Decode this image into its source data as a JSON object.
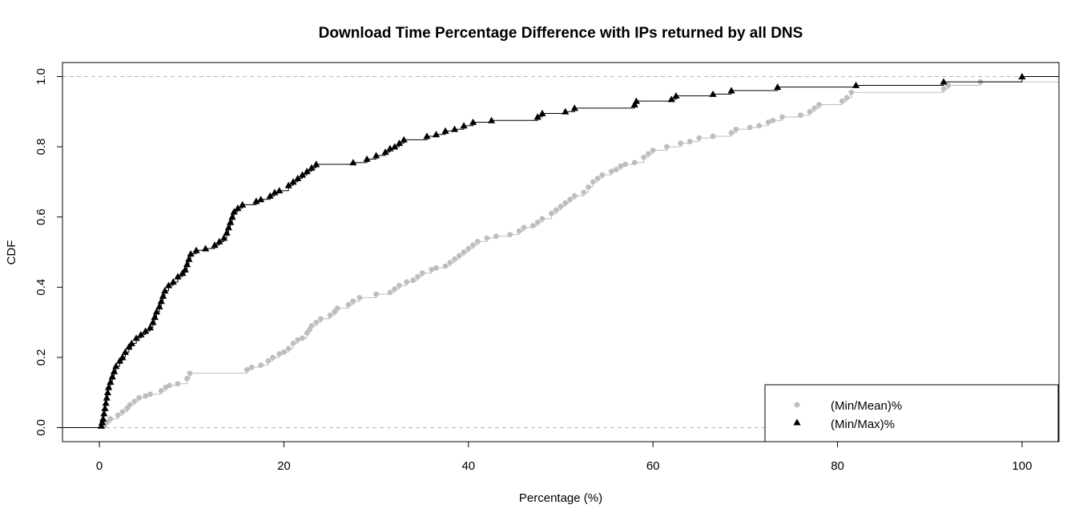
{
  "chart_data": {
    "type": "line",
    "title": "Download Time Percentage Difference with IPs returned by all DNS",
    "xlabel": "Percentage (%)",
    "ylabel": "CDF",
    "xlim": [
      -4,
      104
    ],
    "ylim": [
      -0.04,
      1.04
    ],
    "x_ticks": [
      0,
      20,
      40,
      60,
      80,
      100
    ],
    "y_ticks": [
      0.0,
      0.2,
      0.4,
      0.6,
      0.8,
      1.0
    ],
    "x_tick_labels": [
      "0",
      "20",
      "40",
      "60",
      "80",
      "100"
    ],
    "y_tick_labels": [
      "0.0",
      "0.2",
      "0.4",
      "0.6",
      "0.8",
      "1.0"
    ],
    "reference_lines": [
      0.0,
      1.0
    ],
    "legend_position": "bottom-right",
    "series": [
      {
        "name": "(Min/Mean)%",
        "color": "#bebebe",
        "marker": "circle",
        "points": [
          [
            0.5,
            0.005
          ],
          [
            0.8,
            0.015
          ],
          [
            1.2,
            0.025
          ],
          [
            2.0,
            0.035
          ],
          [
            2.5,
            0.045
          ],
          [
            3.0,
            0.055
          ],
          [
            3.3,
            0.065
          ],
          [
            3.8,
            0.075
          ],
          [
            4.3,
            0.085
          ],
          [
            5.0,
            0.09
          ],
          [
            5.5,
            0.095
          ],
          [
            6.7,
            0.105
          ],
          [
            7.2,
            0.115
          ],
          [
            7.6,
            0.12
          ],
          [
            8.5,
            0.125
          ],
          [
            9.5,
            0.14
          ],
          [
            9.8,
            0.155
          ],
          [
            16.0,
            0.165
          ],
          [
            16.5,
            0.172
          ],
          [
            17.5,
            0.178
          ],
          [
            18.3,
            0.19
          ],
          [
            18.8,
            0.2
          ],
          [
            19.5,
            0.21
          ],
          [
            20.0,
            0.215
          ],
          [
            20.5,
            0.225
          ],
          [
            21.0,
            0.24
          ],
          [
            21.5,
            0.25
          ],
          [
            22.0,
            0.255
          ],
          [
            22.5,
            0.27
          ],
          [
            22.8,
            0.28
          ],
          [
            23.0,
            0.29
          ],
          [
            23.5,
            0.3
          ],
          [
            24.0,
            0.31
          ],
          [
            25.0,
            0.32
          ],
          [
            25.5,
            0.33
          ],
          [
            25.8,
            0.34
          ],
          [
            27.0,
            0.35
          ],
          [
            27.5,
            0.36
          ],
          [
            28.2,
            0.37
          ],
          [
            30.0,
            0.38
          ],
          [
            31.5,
            0.385
          ],
          [
            32.0,
            0.395
          ],
          [
            32.5,
            0.405
          ],
          [
            33.3,
            0.415
          ],
          [
            34.0,
            0.42
          ],
          [
            34.5,
            0.43
          ],
          [
            35.0,
            0.44
          ],
          [
            36.0,
            0.45
          ],
          [
            36.5,
            0.455
          ],
          [
            37.5,
            0.46
          ],
          [
            38.0,
            0.47
          ],
          [
            38.5,
            0.48
          ],
          [
            39.0,
            0.49
          ],
          [
            39.5,
            0.5
          ],
          [
            40.0,
            0.51
          ],
          [
            40.5,
            0.52
          ],
          [
            41.0,
            0.53
          ],
          [
            42.0,
            0.54
          ],
          [
            43.0,
            0.545
          ],
          [
            44.5,
            0.55
          ],
          [
            45.5,
            0.56
          ],
          [
            46.0,
            0.57
          ],
          [
            47.0,
            0.575
          ],
          [
            47.5,
            0.585
          ],
          [
            48.0,
            0.595
          ],
          [
            49.0,
            0.61
          ],
          [
            49.5,
            0.62
          ],
          [
            50.0,
            0.63
          ],
          [
            50.5,
            0.64
          ],
          [
            51.0,
            0.65
          ],
          [
            51.5,
            0.66
          ],
          [
            52.5,
            0.67
          ],
          [
            53.0,
            0.685
          ],
          [
            53.5,
            0.7
          ],
          [
            54.0,
            0.71
          ],
          [
            54.5,
            0.72
          ],
          [
            55.5,
            0.73
          ],
          [
            56.0,
            0.735
          ],
          [
            56.5,
            0.745
          ],
          [
            57.0,
            0.75
          ],
          [
            58.0,
            0.755
          ],
          [
            59.0,
            0.77
          ],
          [
            59.5,
            0.78
          ],
          [
            60.0,
            0.79
          ],
          [
            61.5,
            0.8
          ],
          [
            63.0,
            0.81
          ],
          [
            64.0,
            0.815
          ],
          [
            65.0,
            0.825
          ],
          [
            66.5,
            0.83
          ],
          [
            68.5,
            0.84
          ],
          [
            69.0,
            0.85
          ],
          [
            70.5,
            0.855
          ],
          [
            71.5,
            0.86
          ],
          [
            72.5,
            0.87
          ],
          [
            73.0,
            0.875
          ],
          [
            74.0,
            0.885
          ],
          [
            76.0,
            0.89
          ],
          [
            77.0,
            0.9
          ],
          [
            77.5,
            0.91
          ],
          [
            78.0,
            0.92
          ],
          [
            80.5,
            0.93
          ],
          [
            81.0,
            0.94
          ],
          [
            81.5,
            0.955
          ],
          [
            91.5,
            0.965
          ],
          [
            92.0,
            0.975
          ],
          [
            95.5,
            0.985
          ]
        ]
      },
      {
        "name": "(Min/Max)%",
        "color": "#000000",
        "marker": "triangle",
        "points": [
          [
            0.2,
            0.005
          ],
          [
            0.3,
            0.015
          ],
          [
            0.4,
            0.025
          ],
          [
            0.5,
            0.04
          ],
          [
            0.6,
            0.055
          ],
          [
            0.7,
            0.07
          ],
          [
            0.8,
            0.085
          ],
          [
            0.9,
            0.1
          ],
          [
            1.0,
            0.115
          ],
          [
            1.2,
            0.13
          ],
          [
            1.4,
            0.145
          ],
          [
            1.6,
            0.16
          ],
          [
            1.8,
            0.175
          ],
          [
            2.2,
            0.19
          ],
          [
            2.5,
            0.2
          ],
          [
            2.8,
            0.215
          ],
          [
            3.2,
            0.23
          ],
          [
            3.5,
            0.24
          ],
          [
            4.0,
            0.255
          ],
          [
            4.5,
            0.265
          ],
          [
            5.0,
            0.275
          ],
          [
            5.5,
            0.285
          ],
          [
            5.8,
            0.3
          ],
          [
            6.0,
            0.315
          ],
          [
            6.2,
            0.33
          ],
          [
            6.5,
            0.345
          ],
          [
            6.7,
            0.36
          ],
          [
            6.9,
            0.375
          ],
          [
            7.1,
            0.39
          ],
          [
            7.5,
            0.405
          ],
          [
            8.0,
            0.415
          ],
          [
            8.5,
            0.43
          ],
          [
            9.0,
            0.44
          ],
          [
            9.3,
            0.45
          ],
          [
            9.5,
            0.465
          ],
          [
            9.7,
            0.48
          ],
          [
            9.9,
            0.495
          ],
          [
            10.5,
            0.505
          ],
          [
            11.5,
            0.51
          ],
          [
            12.5,
            0.52
          ],
          [
            13.0,
            0.53
          ],
          [
            13.5,
            0.54
          ],
          [
            13.8,
            0.555
          ],
          [
            14.0,
            0.57
          ],
          [
            14.2,
            0.585
          ],
          [
            14.4,
            0.6
          ],
          [
            14.6,
            0.615
          ],
          [
            15.0,
            0.625
          ],
          [
            15.5,
            0.635
          ],
          [
            17.0,
            0.645
          ],
          [
            17.5,
            0.65
          ],
          [
            18.5,
            0.66
          ],
          [
            19.0,
            0.67
          ],
          [
            19.5,
            0.675
          ],
          [
            20.5,
            0.69
          ],
          [
            21.0,
            0.7
          ],
          [
            21.5,
            0.71
          ],
          [
            22.0,
            0.72
          ],
          [
            22.5,
            0.73
          ],
          [
            23.0,
            0.74
          ],
          [
            23.5,
            0.75
          ],
          [
            27.5,
            0.755
          ],
          [
            29.0,
            0.765
          ],
          [
            30.0,
            0.775
          ],
          [
            31.0,
            0.785
          ],
          [
            31.5,
            0.795
          ],
          [
            32.0,
            0.8
          ],
          [
            32.5,
            0.81
          ],
          [
            33.0,
            0.82
          ],
          [
            35.5,
            0.83
          ],
          [
            36.5,
            0.835
          ],
          [
            37.5,
            0.845
          ],
          [
            38.5,
            0.85
          ],
          [
            39.5,
            0.86
          ],
          [
            40.5,
            0.87
          ],
          [
            42.5,
            0.875
          ],
          [
            47.5,
            0.885
          ],
          [
            48.0,
            0.895
          ],
          [
            50.5,
            0.9
          ],
          [
            51.5,
            0.91
          ],
          [
            58.0,
            0.92
          ],
          [
            58.2,
            0.93
          ],
          [
            62.0,
            0.935
          ],
          [
            62.5,
            0.945
          ],
          [
            66.5,
            0.95
          ],
          [
            68.5,
            0.96
          ],
          [
            73.5,
            0.97
          ],
          [
            82.0,
            0.975
          ],
          [
            91.5,
            0.985
          ],
          [
            100.0,
            1.0
          ]
        ]
      }
    ]
  }
}
